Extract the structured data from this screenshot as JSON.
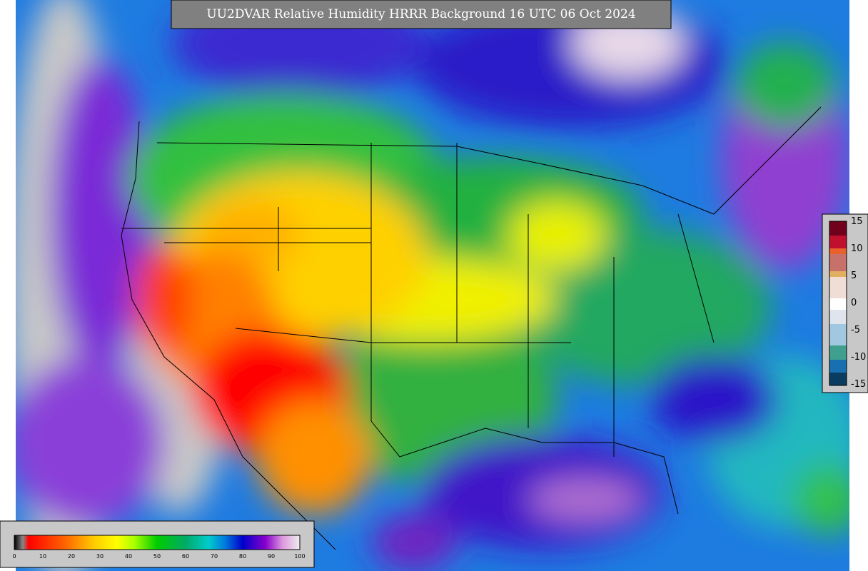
{
  "title": "UU2DVAR Relative Humidity HRRR Background  16 UTC 06 Oct 2024",
  "rh_colorbar": {
    "ticks": [
      0,
      10,
      20,
      30,
      40,
      50,
      60,
      70,
      80,
      90,
      100
    ]
  },
  "side_colorbar": {
    "ticks": [
      15,
      10,
      5,
      0,
      -5,
      -10,
      -15
    ]
  }
}
